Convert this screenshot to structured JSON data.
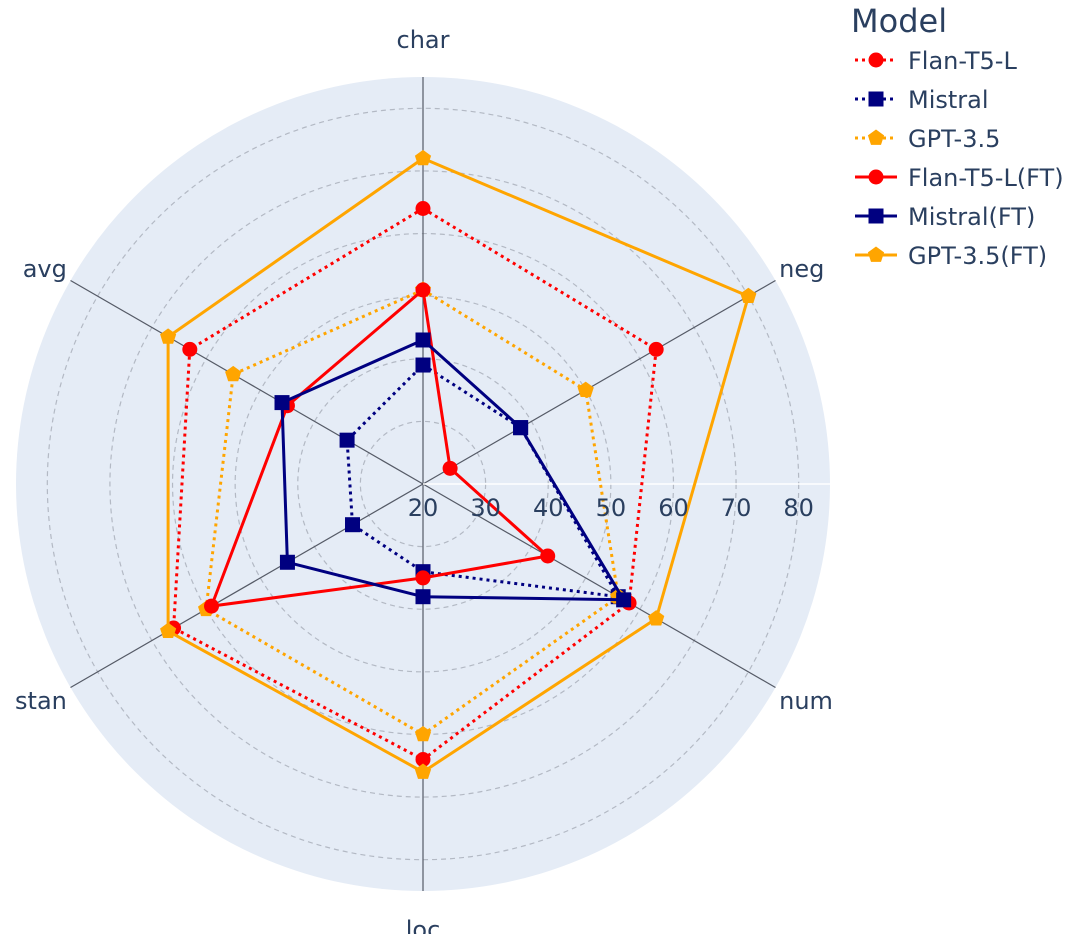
{
  "chart_data": {
    "type": "radar",
    "axes": [
      "char",
      "neg",
      "num",
      "loc",
      "stan",
      "avg"
    ],
    "radial_range": [
      20,
      85
    ],
    "radial_ticks": [
      "20",
      "30",
      "40",
      "50",
      "60",
      "70",
      "80"
    ],
    "grid": true,
    "legend": {
      "title": "Model",
      "placement": "top-right"
    },
    "series": [
      {
        "name": "Flan-T5-L",
        "color": "#ff0000",
        "dash": "dotted",
        "marker": "circle",
        "values": [
          64,
          63,
          58,
          64,
          66,
          63
        ]
      },
      {
        "name": "Mistral",
        "color": "#000080",
        "dash": "dotted",
        "marker": "square",
        "values": [
          39,
          38,
          56,
          34,
          33,
          34
        ]
      },
      {
        "name": "GPT-3.5",
        "color": "#ffa500",
        "dash": "dotted",
        "marker": "pentagon",
        "values": [
          51,
          50,
          56,
          60,
          60,
          55
        ]
      },
      {
        "name": "Flan-T5-L(FT)",
        "color": "#ff0000",
        "dash": "solid",
        "marker": "circle",
        "values": [
          51,
          25,
          43,
          35,
          59,
          45
        ]
      },
      {
        "name": "Mistral(FT)",
        "color": "#000080",
        "dash": "solid",
        "marker": "square",
        "values": [
          43,
          38,
          57,
          38,
          45,
          46
        ]
      },
      {
        "name": "GPT-3.5(FT)",
        "color": "#ffa500",
        "dash": "solid",
        "marker": "pentagon",
        "values": [
          72,
          80,
          63,
          66,
          67,
          67
        ]
      }
    ]
  }
}
